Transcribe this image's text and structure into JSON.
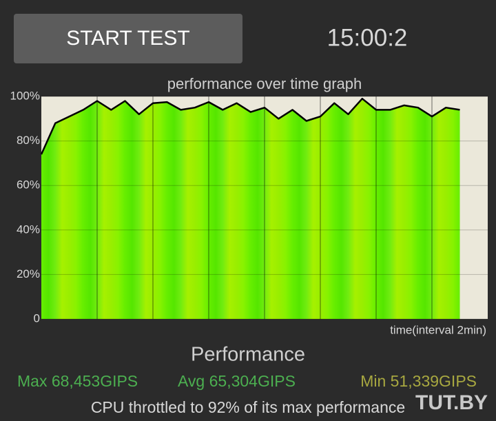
{
  "button": "START TEST",
  "timer": "15:00:2",
  "chart_data": {
    "type": "area",
    "title": "performance over time graph",
    "x_label": "time(interval 2min)",
    "x": [
      0,
      0.5,
      1,
      1.5,
      2,
      2.5,
      3,
      3.5,
      4,
      4.5,
      5,
      5.5,
      6,
      6.5,
      7,
      7.5,
      8,
      8.5,
      9,
      9.5,
      10,
      10.5,
      11,
      11.5,
      12,
      12.5,
      13,
      13.5,
      14,
      14.5,
      15
    ],
    "values": [
      74,
      88,
      91,
      94,
      98,
      94,
      98,
      92,
      97,
      97.5,
      94,
      95,
      97.5,
      94,
      97,
      93,
      95,
      90,
      94,
      89,
      91,
      97,
      92,
      99,
      94,
      94,
      96,
      95,
      91,
      95,
      94
    ],
    "color": "#000000",
    "xlim": [
      0,
      16
    ],
    "xticks": [
      2,
      4,
      6,
      8,
      10,
      12,
      14
    ],
    "ylim": [
      0,
      100
    ],
    "yticks": [
      0,
      {
        "value": 20,
        "label": "20%"
      },
      {
        "value": 40,
        "label": "40%"
      },
      {
        "value": 60,
        "label": "60%"
      },
      {
        "value": 80,
        "label": "80%"
      },
      {
        "value": 100,
        "label": "100%"
      }
    ],
    "grid": true
  },
  "performance": {
    "title": "Performance",
    "max": "Max 68,453GIPS",
    "avg": "Avg 65,304GIPS",
    "min": "Min 51,339GIPS",
    "summary": "CPU throttled to 92% of its max performance"
  },
  "watermark": "TUT.BY"
}
